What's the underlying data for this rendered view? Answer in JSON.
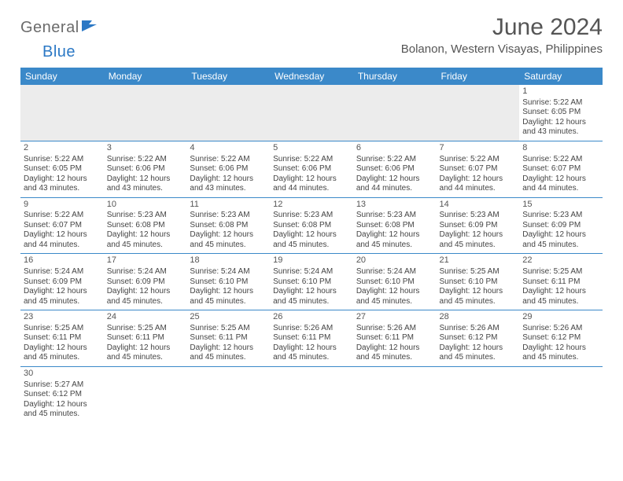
{
  "logo": {
    "text1": "General",
    "text2": "Blue"
  },
  "title": "June 2024",
  "location": "Bolanon, Western Visayas, Philippines",
  "colors": {
    "header_bg": "#3b89c9",
    "header_text": "#ffffff",
    "cell_border": "#3b89c9",
    "logo_gray": "#6b6b6b",
    "logo_blue": "#2b78c5",
    "text": "#444444",
    "empty_bg": "#ececec"
  },
  "weekdays": [
    "Sunday",
    "Monday",
    "Tuesday",
    "Wednesday",
    "Thursday",
    "Friday",
    "Saturday"
  ],
  "weeks": [
    [
      null,
      null,
      null,
      null,
      null,
      null,
      {
        "d": "1",
        "sr": "5:22 AM",
        "ss": "6:05 PM",
        "dl": "12 hours and 43 minutes."
      }
    ],
    [
      {
        "d": "2",
        "sr": "5:22 AM",
        "ss": "6:05 PM",
        "dl": "12 hours and 43 minutes."
      },
      {
        "d": "3",
        "sr": "5:22 AM",
        "ss": "6:06 PM",
        "dl": "12 hours and 43 minutes."
      },
      {
        "d": "4",
        "sr": "5:22 AM",
        "ss": "6:06 PM",
        "dl": "12 hours and 43 minutes."
      },
      {
        "d": "5",
        "sr": "5:22 AM",
        "ss": "6:06 PM",
        "dl": "12 hours and 44 minutes."
      },
      {
        "d": "6",
        "sr": "5:22 AM",
        "ss": "6:06 PM",
        "dl": "12 hours and 44 minutes."
      },
      {
        "d": "7",
        "sr": "5:22 AM",
        "ss": "6:07 PM",
        "dl": "12 hours and 44 minutes."
      },
      {
        "d": "8",
        "sr": "5:22 AM",
        "ss": "6:07 PM",
        "dl": "12 hours and 44 minutes."
      }
    ],
    [
      {
        "d": "9",
        "sr": "5:22 AM",
        "ss": "6:07 PM",
        "dl": "12 hours and 44 minutes."
      },
      {
        "d": "10",
        "sr": "5:23 AM",
        "ss": "6:08 PM",
        "dl": "12 hours and 45 minutes."
      },
      {
        "d": "11",
        "sr": "5:23 AM",
        "ss": "6:08 PM",
        "dl": "12 hours and 45 minutes."
      },
      {
        "d": "12",
        "sr": "5:23 AM",
        "ss": "6:08 PM",
        "dl": "12 hours and 45 minutes."
      },
      {
        "d": "13",
        "sr": "5:23 AM",
        "ss": "6:08 PM",
        "dl": "12 hours and 45 minutes."
      },
      {
        "d": "14",
        "sr": "5:23 AM",
        "ss": "6:09 PM",
        "dl": "12 hours and 45 minutes."
      },
      {
        "d": "15",
        "sr": "5:23 AM",
        "ss": "6:09 PM",
        "dl": "12 hours and 45 minutes."
      }
    ],
    [
      {
        "d": "16",
        "sr": "5:24 AM",
        "ss": "6:09 PM",
        "dl": "12 hours and 45 minutes."
      },
      {
        "d": "17",
        "sr": "5:24 AM",
        "ss": "6:09 PM",
        "dl": "12 hours and 45 minutes."
      },
      {
        "d": "18",
        "sr": "5:24 AM",
        "ss": "6:10 PM",
        "dl": "12 hours and 45 minutes."
      },
      {
        "d": "19",
        "sr": "5:24 AM",
        "ss": "6:10 PM",
        "dl": "12 hours and 45 minutes."
      },
      {
        "d": "20",
        "sr": "5:24 AM",
        "ss": "6:10 PM",
        "dl": "12 hours and 45 minutes."
      },
      {
        "d": "21",
        "sr": "5:25 AM",
        "ss": "6:10 PM",
        "dl": "12 hours and 45 minutes."
      },
      {
        "d": "22",
        "sr": "5:25 AM",
        "ss": "6:11 PM",
        "dl": "12 hours and 45 minutes."
      }
    ],
    [
      {
        "d": "23",
        "sr": "5:25 AM",
        "ss": "6:11 PM",
        "dl": "12 hours and 45 minutes."
      },
      {
        "d": "24",
        "sr": "5:25 AM",
        "ss": "6:11 PM",
        "dl": "12 hours and 45 minutes."
      },
      {
        "d": "25",
        "sr": "5:25 AM",
        "ss": "6:11 PM",
        "dl": "12 hours and 45 minutes."
      },
      {
        "d": "26",
        "sr": "5:26 AM",
        "ss": "6:11 PM",
        "dl": "12 hours and 45 minutes."
      },
      {
        "d": "27",
        "sr": "5:26 AM",
        "ss": "6:11 PM",
        "dl": "12 hours and 45 minutes."
      },
      {
        "d": "28",
        "sr": "5:26 AM",
        "ss": "6:12 PM",
        "dl": "12 hours and 45 minutes."
      },
      {
        "d": "29",
        "sr": "5:26 AM",
        "ss": "6:12 PM",
        "dl": "12 hours and 45 minutes."
      }
    ],
    [
      {
        "d": "30",
        "sr": "5:27 AM",
        "ss": "6:12 PM",
        "dl": "12 hours and 45 minutes."
      },
      null,
      null,
      null,
      null,
      null,
      null
    ]
  ],
  "labels": {
    "sunrise": "Sunrise: ",
    "sunset": "Sunset: ",
    "daylight": "Daylight: "
  }
}
